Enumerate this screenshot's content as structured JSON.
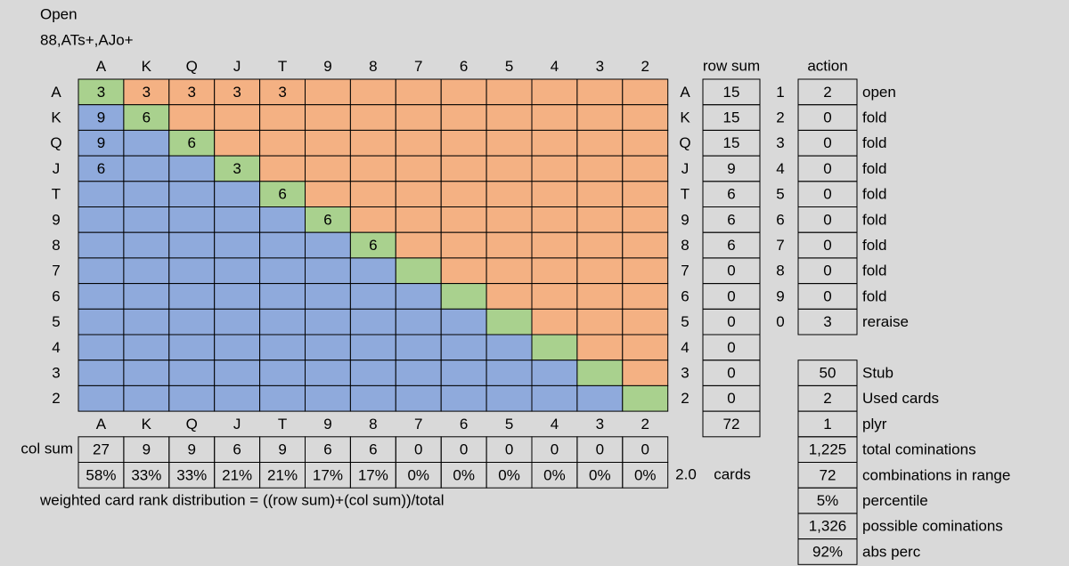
{
  "title": "Open",
  "range": "88,ATs+,AJo+",
  "ranks": [
    "A",
    "K",
    "Q",
    "J",
    "T",
    "9",
    "8",
    "7",
    "6",
    "5",
    "4",
    "3",
    "2"
  ],
  "grid": [
    [
      3,
      3,
      3,
      3,
      3,
      null,
      null,
      null,
      null,
      null,
      null,
      null,
      null
    ],
    [
      9,
      6,
      null,
      null,
      null,
      null,
      null,
      null,
      null,
      null,
      null,
      null,
      null
    ],
    [
      9,
      null,
      6,
      null,
      null,
      null,
      null,
      null,
      null,
      null,
      null,
      null,
      null
    ],
    [
      6,
      null,
      null,
      3,
      null,
      null,
      null,
      null,
      null,
      null,
      null,
      null,
      null
    ],
    [
      null,
      null,
      null,
      null,
      6,
      null,
      null,
      null,
      null,
      null,
      null,
      null,
      null
    ],
    [
      null,
      null,
      null,
      null,
      null,
      6,
      null,
      null,
      null,
      null,
      null,
      null,
      null
    ],
    [
      null,
      null,
      null,
      null,
      null,
      null,
      6,
      null,
      null,
      null,
      null,
      null,
      null
    ],
    [
      null,
      null,
      null,
      null,
      null,
      null,
      null,
      null,
      null,
      null,
      null,
      null,
      null
    ],
    [
      null,
      null,
      null,
      null,
      null,
      null,
      null,
      null,
      null,
      null,
      null,
      null,
      null
    ],
    [
      null,
      null,
      null,
      null,
      null,
      null,
      null,
      null,
      null,
      null,
      null,
      null,
      null
    ],
    [
      null,
      null,
      null,
      null,
      null,
      null,
      null,
      null,
      null,
      null,
      null,
      null,
      null
    ],
    [
      null,
      null,
      null,
      null,
      null,
      null,
      null,
      null,
      null,
      null,
      null,
      null,
      null
    ],
    [
      null,
      null,
      null,
      null,
      null,
      null,
      null,
      null,
      null,
      null,
      null,
      null,
      null
    ]
  ],
  "row_sum": {
    "header": "row sum",
    "values": [
      15,
      15,
      15,
      9,
      6,
      6,
      6,
      0,
      0,
      0,
      0,
      0,
      0
    ],
    "total": 72
  },
  "col_sum": {
    "label": "col sum",
    "values": [
      27,
      9,
      9,
      6,
      9,
      6,
      6,
      0,
      0,
      0,
      0,
      0,
      0
    ],
    "percents": [
      "58%",
      "33%",
      "33%",
      "21%",
      "21%",
      "17%",
      "17%",
      "0%",
      "0%",
      "0%",
      "0%",
      "0%",
      "0%"
    ]
  },
  "cards": {
    "value": "2.0",
    "label": "cards"
  },
  "formula": "weighted card rank distribution = ((row sum)+(col sum))/total",
  "action": {
    "header": "action",
    "rows": [
      {
        "num": 1,
        "value": 2,
        "label": "open"
      },
      {
        "num": 2,
        "value": 0,
        "label": "fold"
      },
      {
        "num": 3,
        "value": 0,
        "label": "fold"
      },
      {
        "num": 4,
        "value": 0,
        "label": "fold"
      },
      {
        "num": 5,
        "value": 0,
        "label": "fold"
      },
      {
        "num": 6,
        "value": 0,
        "label": "fold"
      },
      {
        "num": 7,
        "value": 0,
        "label": "fold"
      },
      {
        "num": 8,
        "value": 0,
        "label": "fold"
      },
      {
        "num": 9,
        "value": 0,
        "label": "fold"
      },
      {
        "num": 0,
        "value": 3,
        "label": "reraise"
      }
    ]
  },
  "stats": [
    {
      "value": "50",
      "label": "Stub"
    },
    {
      "value": "2",
      "label": "Used cards"
    },
    {
      "value": "1",
      "label": "plyr"
    },
    {
      "value": "1,225",
      "label": "total cominations"
    },
    {
      "value": "72",
      "label": "combinations in range"
    },
    {
      "value": "5%",
      "label": "percentile"
    },
    {
      "value": "1,326",
      "label": "possible cominations"
    },
    {
      "value": "92%",
      "label": "abs perc"
    }
  ]
}
